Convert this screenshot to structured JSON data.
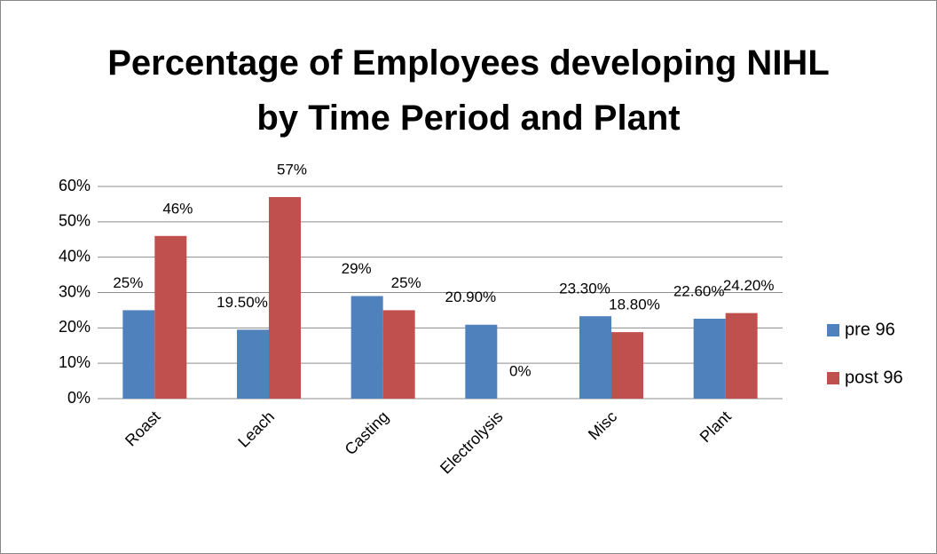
{
  "chart_data": {
    "type": "bar",
    "title": "Percentage of Employees developing NIHL by Time Period and Plant",
    "categories": [
      "Roast",
      "Leach",
      "Casting",
      "Electrolysis",
      "Misc",
      "Plant"
    ],
    "series": [
      {
        "name": "pre 96",
        "color": "#4f81bd",
        "values": [
          25,
          19.5,
          29,
          20.9,
          23.3,
          22.6
        ],
        "value_labels": [
          "25%",
          "19.50%",
          "29%",
          "20.90%",
          "23.30%",
          "22.60%"
        ]
      },
      {
        "name": "post 96",
        "color": "#c0504d",
        "values": [
          46,
          57,
          25,
          0,
          18.8,
          24.2
        ],
        "value_labels": [
          "46%",
          "57%",
          "25%",
          "0%",
          "18.80%",
          "24.20%"
        ]
      }
    ],
    "ylim": [
      0,
      60
    ],
    "yticks": [
      {
        "value": 0,
        "label": "0%"
      },
      {
        "value": 10,
        "label": "10%"
      },
      {
        "value": 20,
        "label": "20%"
      },
      {
        "value": 30,
        "label": "30%"
      },
      {
        "value": 40,
        "label": "40%"
      },
      {
        "value": 50,
        "label": "50%"
      },
      {
        "value": 60,
        "label": "60%"
      }
    ],
    "grid": true,
    "legend": "right"
  }
}
